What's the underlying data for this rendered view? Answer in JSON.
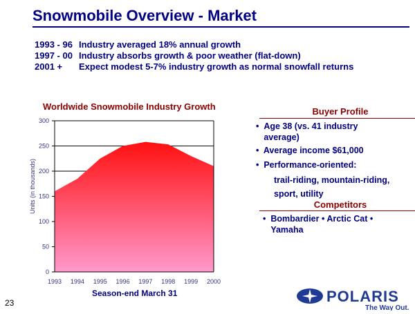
{
  "slide": {
    "title": "Snowmobile Overview - Market",
    "page_number": "23"
  },
  "history": [
    {
      "period": "1993 - 96",
      "text": "Industry averaged 18% annual growth"
    },
    {
      "period": "1997 - 00",
      "text": "Industry absorbs growth & poor weather (flat-down)"
    },
    {
      "period": "2001 +",
      "text": "Expect modest 5-7% industry growth as normal snowfall returns"
    }
  ],
  "chart_data": {
    "type": "area",
    "title": "Worldwide Snowmobile Industry Growth",
    "xlabel": "Season-end March 31",
    "ylabel": "Units (in thousands)",
    "categories": [
      "1993",
      "1994",
      "1995",
      "1996",
      "1997",
      "1998",
      "1999",
      "2000"
    ],
    "values": [
      160,
      185,
      225,
      250,
      258,
      253,
      230,
      210
    ],
    "ylim": [
      0,
      300
    ],
    "yticks": [
      "0",
      "50",
      "100",
      "150",
      "200",
      "250",
      "300"
    ],
    "colors": {
      "top": "#ff1010",
      "bottom": "#ff99cc"
    }
  },
  "buyer_profile": {
    "title": "Buyer Profile",
    "items": [
      "Age 38 (vs. 41 industry average)",
      "Average income $61,000",
      "Performance-oriented:"
    ],
    "sub": "trail-riding, mountain-riding, sport, utility"
  },
  "competitors": {
    "title": "Competitors",
    "text": "Bombardier • Arctic Cat • Yamaha"
  },
  "logo": {
    "brand": "POLARIS",
    "tagline": "The Way Out."
  }
}
